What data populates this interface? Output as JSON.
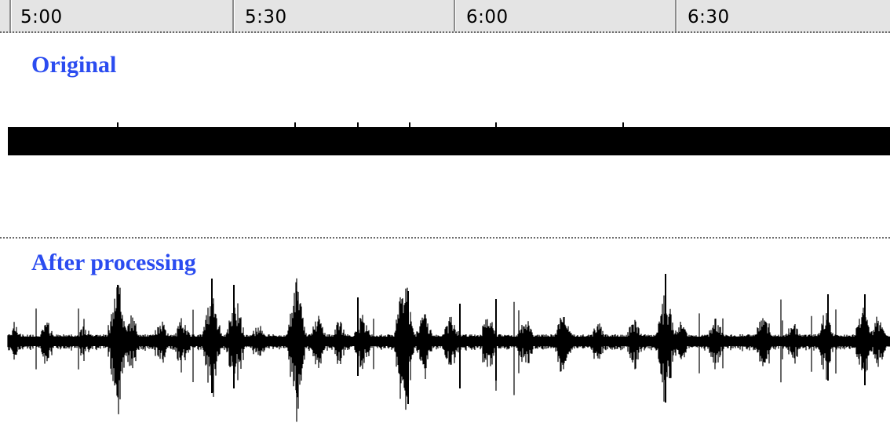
{
  "timeline": {
    "ticks": [
      {
        "label": "5:00"
      },
      {
        "label": "5:30"
      },
      {
        "label": "6:00"
      },
      {
        "label": "6:30"
      }
    ]
  },
  "tracks": {
    "original": {
      "label": "Original"
    },
    "processed": {
      "label": "After processing"
    }
  },
  "colors": {
    "label_blue": "#2b4cf0",
    "waveform": "#000000",
    "timeline_bg": "#e4e4e4"
  }
}
